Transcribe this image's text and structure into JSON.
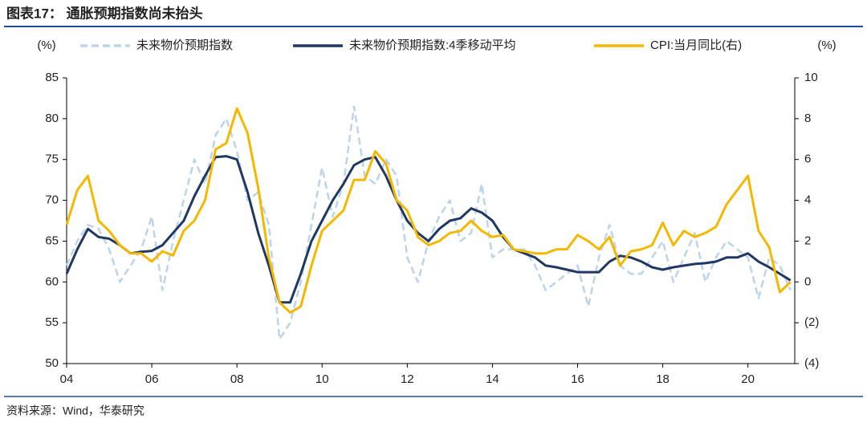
{
  "chart_data": {
    "type": "line",
    "title": "图表17：  通胀预期指数尚未抬头",
    "source": "资料来源：Wind，华泰研究",
    "y_unit": "(%)",
    "y2_unit": "(%)",
    "x": [
      2004,
      2004.25,
      2004.5,
      2004.75,
      2005,
      2005.25,
      2005.5,
      2005.75,
      2006,
      2006.25,
      2006.5,
      2006.75,
      2007,
      2007.25,
      2007.5,
      2007.75,
      2008,
      2008.25,
      2008.5,
      2008.75,
      2009,
      2009.25,
      2009.5,
      2009.75,
      2010,
      2010.25,
      2010.5,
      2010.75,
      2011,
      2011.25,
      2011.5,
      2011.75,
      2012,
      2012.25,
      2012.5,
      2012.75,
      2013,
      2013.25,
      2013.5,
      2013.75,
      2014,
      2014.25,
      2014.5,
      2014.75,
      2015,
      2015.25,
      2015.5,
      2015.75,
      2016,
      2016.25,
      2016.5,
      2016.75,
      2017,
      2017.25,
      2017.5,
      2017.75,
      2018,
      2018.25,
      2018.5,
      2018.75,
      2019,
      2019.25,
      2019.5,
      2019.75,
      2020,
      2020.25,
      2020.5,
      2020.75,
      2021
    ],
    "xlim": [
      2004,
      2021.1
    ],
    "xticks": [
      {
        "value": 2004,
        "label": "04"
      },
      {
        "value": 2006,
        "label": "06"
      },
      {
        "value": 2008,
        "label": "08"
      },
      {
        "value": 2010,
        "label": "10"
      },
      {
        "value": 2012,
        "label": "12"
      },
      {
        "value": 2014,
        "label": "14"
      },
      {
        "value": 2016,
        "label": "16"
      },
      {
        "value": 2018,
        "label": "18"
      },
      {
        "value": 2020,
        "label": "20"
      }
    ],
    "ylim": [
      50,
      85
    ],
    "yticks": [
      50,
      55,
      60,
      65,
      70,
      75,
      80,
      85
    ],
    "y2lim": [
      -4,
      10
    ],
    "y2ticks": [
      {
        "value": -4,
        "label": "(4)"
      },
      {
        "value": -2,
        "label": "(2)"
      },
      0,
      2,
      4,
      6,
      8,
      10
    ],
    "series": [
      {
        "name": "未来物价预期指数",
        "color": "#bcd4ea",
        "dashed": true,
        "values": [
          62,
          65,
          67,
          66.5,
          64,
          60,
          62,
          64,
          68,
          59,
          65,
          70,
          75,
          72,
          78,
          80,
          76,
          70,
          71,
          67,
          53,
          55,
          60,
          67,
          74,
          68,
          72,
          81.5,
          73,
          72,
          75,
          73,
          63,
          60,
          65,
          68,
          70,
          65,
          66,
          72,
          63,
          64,
          64,
          64,
          62,
          59,
          60,
          61,
          62,
          57,
          63,
          67,
          62,
          61,
          61,
          63,
          65,
          60,
          63,
          66,
          60,
          63,
          65,
          64,
          63,
          58,
          63,
          62,
          59
        ]
      },
      {
        "name": "未来物价预期指数:4季移动平均",
        "color": "#1f3864",
        "values": [
          61,
          64,
          66.5,
          65.5,
          65.3,
          64.5,
          63.5,
          63.7,
          63.8,
          64.5,
          66,
          67.5,
          70.5,
          73,
          75.3,
          75.4,
          75,
          71,
          66,
          62,
          57.5,
          57.5,
          61,
          65,
          67.5,
          70,
          72,
          74.3,
          75,
          75.3,
          73,
          70,
          67.5,
          66,
          65,
          66.5,
          67.5,
          67.8,
          69,
          68.5,
          67.5,
          65.5,
          64,
          63.5,
          63,
          62,
          61.8,
          61.5,
          61.2,
          61.2,
          61.2,
          62.5,
          63.2,
          63,
          62.5,
          61.8,
          61.5,
          61.8,
          62,
          62.2,
          62.3,
          62.5,
          63,
          63,
          63.5,
          62.5,
          61.8,
          61,
          60.2
        ]
      },
      {
        "name": "CPI:当月同比(右)",
        "color": "#f5b800",
        "axis": "y2",
        "values": [
          2.8,
          4.5,
          5.2,
          3.0,
          2.5,
          1.8,
          1.4,
          1.4,
          1.0,
          1.5,
          1.3,
          2.5,
          3.0,
          4.0,
          6.5,
          6.8,
          8.5,
          7.3,
          4.6,
          1.2,
          -1.0,
          -1.5,
          -1.2,
          0.8,
          2.5,
          3.0,
          3.5,
          5.0,
          5.0,
          6.4,
          5.8,
          4.0,
          3.5,
          2.2,
          1.8,
          2.0,
          2.4,
          2.5,
          3.0,
          2.5,
          2.2,
          2.3,
          1.6,
          1.5,
          1.4,
          1.4,
          1.6,
          1.6,
          2.3,
          2.0,
          1.6,
          2.2,
          0.8,
          1.5,
          1.6,
          1.8,
          2.9,
          1.8,
          2.5,
          2.2,
          2.4,
          2.7,
          3.8,
          4.5,
          5.2,
          2.5,
          1.7,
          -0.5,
          0.0
        ]
      }
    ]
  }
}
